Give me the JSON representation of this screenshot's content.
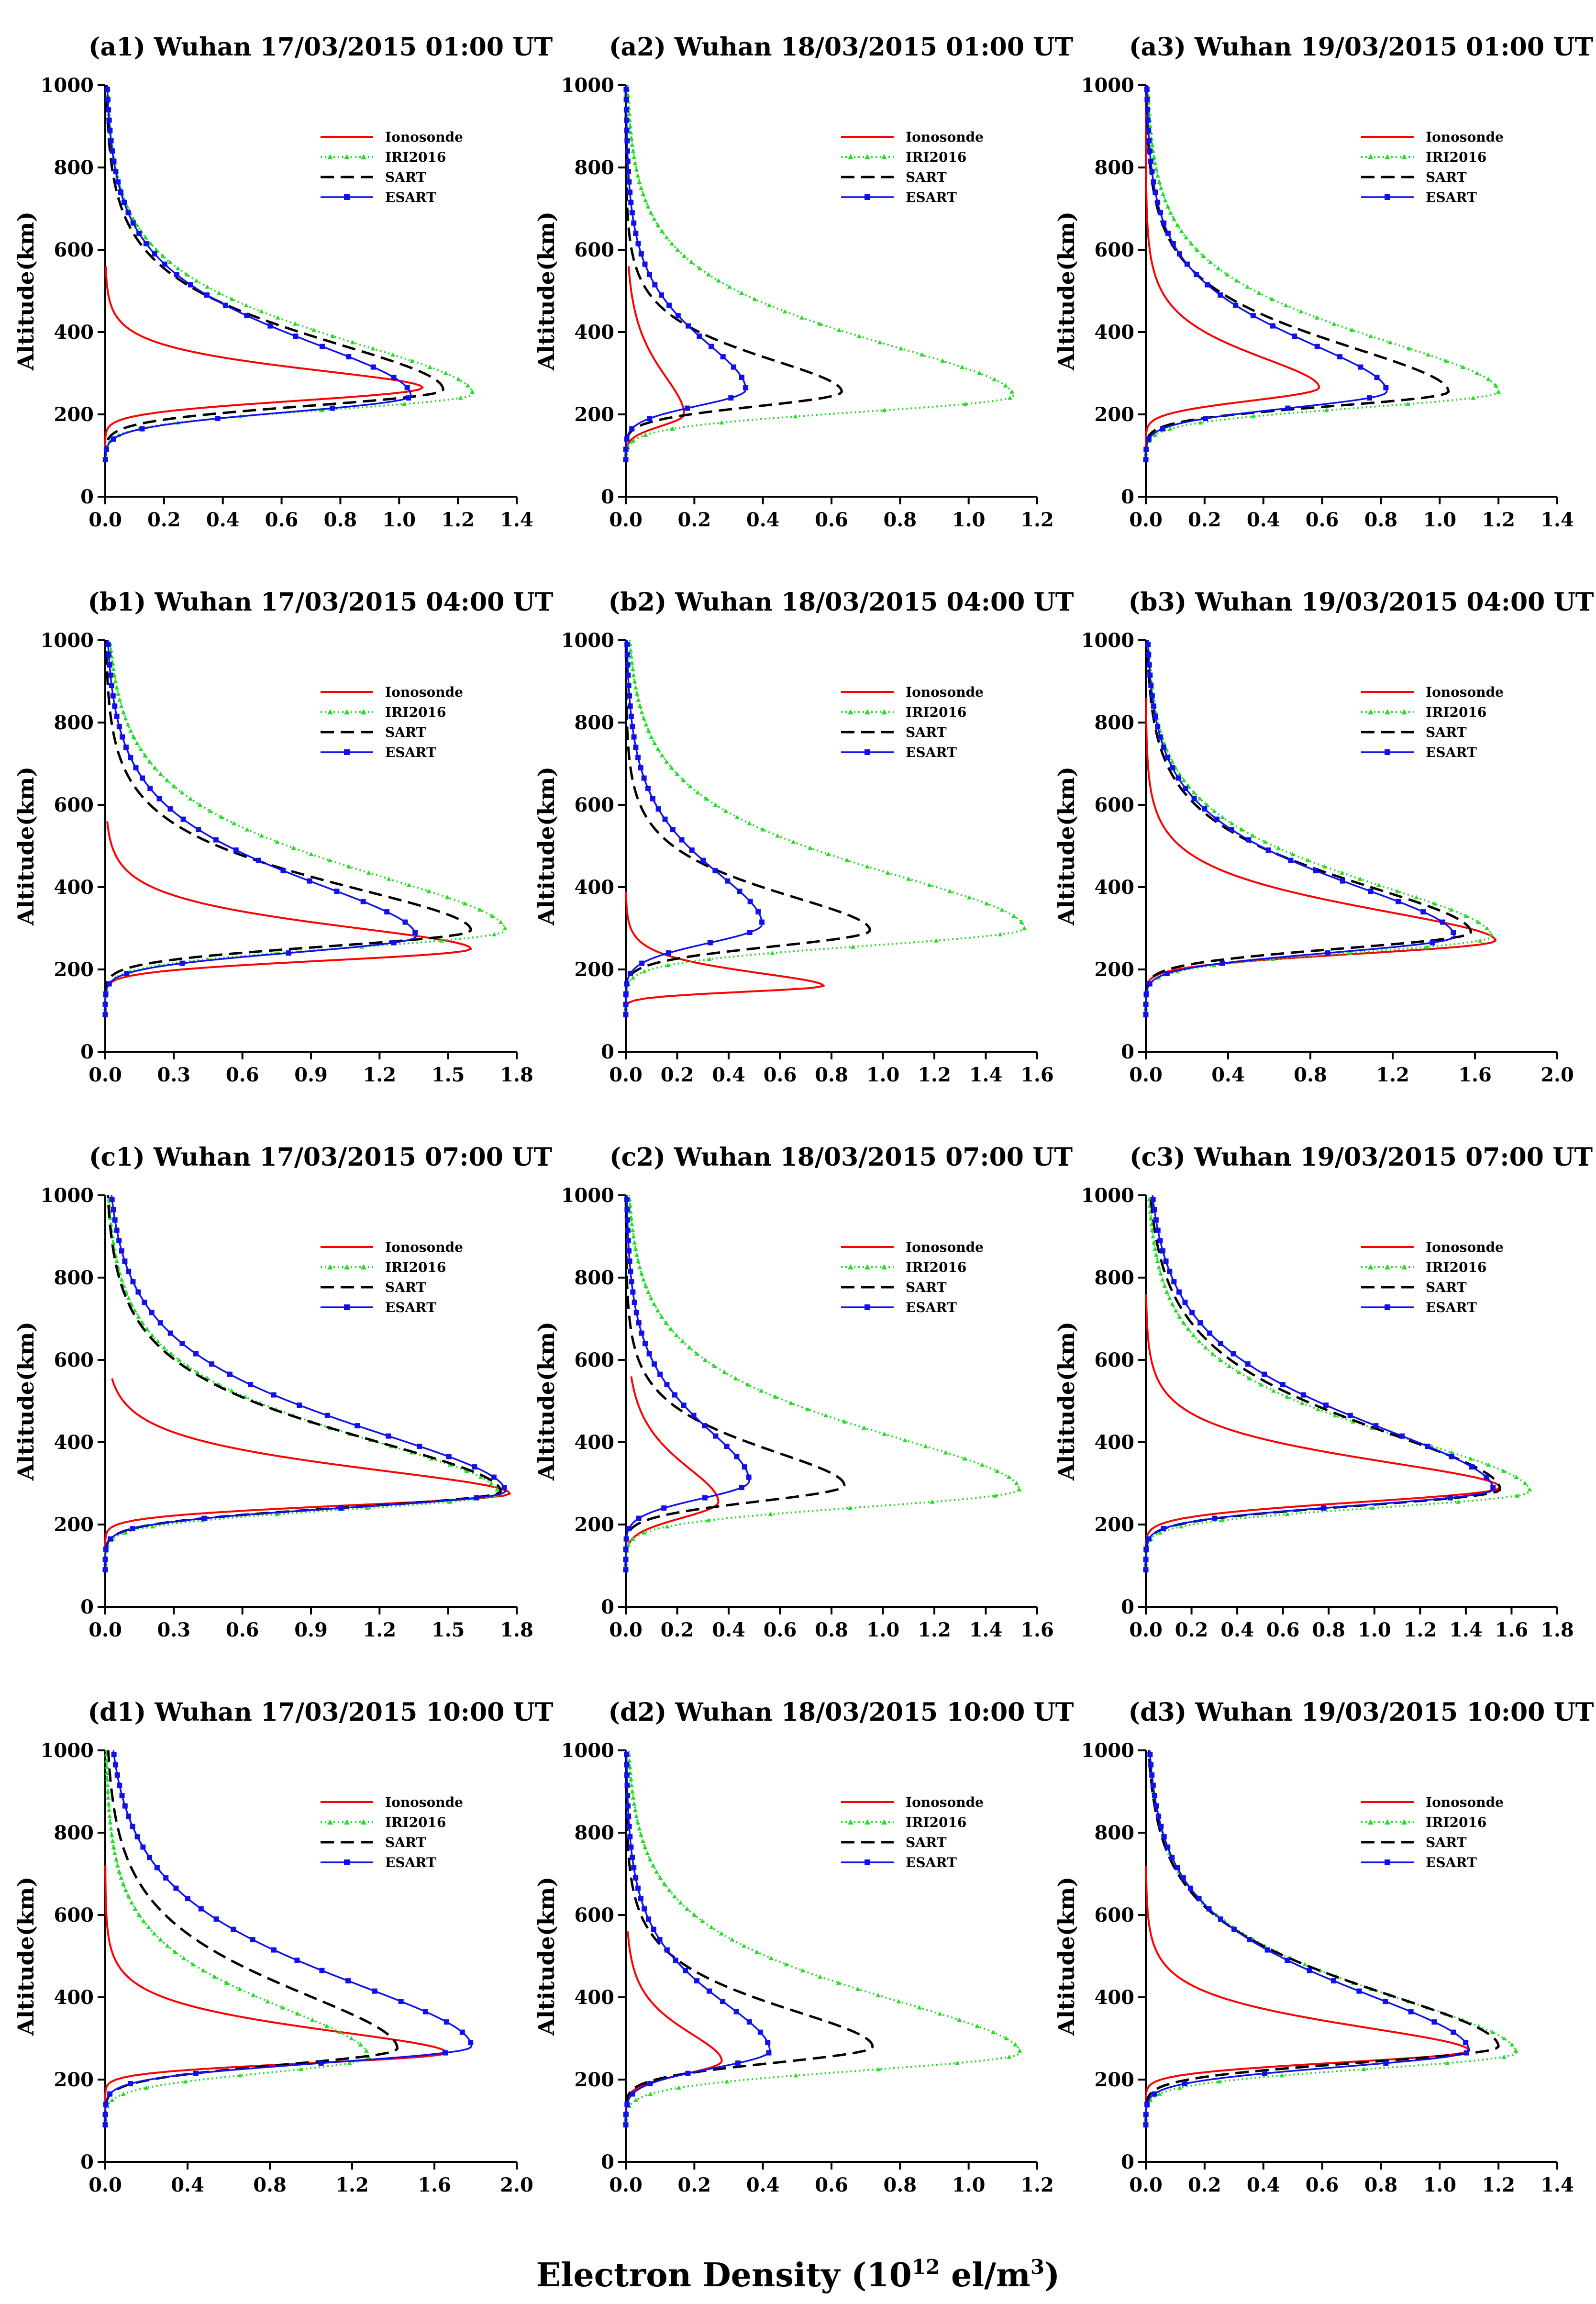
{
  "figure": {
    "xlabel": {
      "main": "Electron Density (10",
      "sup1": "12",
      "mid": " el/m",
      "sup2": "3",
      "end": ")"
    }
  },
  "legend_entries": [
    "Ionosonde",
    "IRI2016",
    "SART",
    "ESART"
  ],
  "series_colors": {
    "Ionosonde": "#ff0000",
    "IRI2016": "#22dd22",
    "SART": "#000000",
    "ESART": "#1010ee"
  },
  "chart_data": [
    {
      "id": "a1",
      "type": "line",
      "title": "(a1) Wuhan 17/03/2015  01:00 UT",
      "xlabel": "Electron Density (10^12 el/m^3)",
      "ylabel": "Altitude(km)",
      "xlim": [
        0,
        1.4
      ],
      "ylim": [
        0,
        1000
      ],
      "xticks": [
        "0.0",
        "0.2",
        "0.4",
        "0.6",
        "0.8",
        "1.0",
        "1.2",
        "1.4"
      ],
      "yticks": [
        "0",
        "200",
        "400",
        "600",
        "800",
        "1000"
      ],
      "series": [
        {
          "name": "Ionosonde",
          "peak": 1.08,
          "hmax": 265,
          "bot": 90,
          "top": 560,
          "sb": 45,
          "st": 40
        },
        {
          "name": "IRI2016",
          "peak": 1.25,
          "hmax": 250,
          "bot": 90,
          "top": 1000,
          "sb": 55,
          "st": 120
        },
        {
          "name": "SART",
          "peak": 1.15,
          "hmax": 260,
          "bot": 90,
          "top": 1000,
          "sb": 55,
          "st": 110
        },
        {
          "name": "ESART",
          "peak": 1.04,
          "hmax": 245,
          "bot": 90,
          "top": 1000,
          "sb": 55,
          "st": 125
        }
      ]
    },
    {
      "id": "a2",
      "type": "line",
      "title": "(a2) Wuhan 18/03/2015  01:00 UT",
      "xlabel": "Electron Density (10^12 el/m^3)",
      "ylabel": "Altitude(km)",
      "xlim": [
        0,
        1.2
      ],
      "ylim": [
        0,
        1000
      ],
      "xticks": [
        "0.0",
        "0.2",
        "0.4",
        "0.6",
        "0.8",
        "1.0",
        "1.2"
      ],
      "yticks": [
        "0",
        "200",
        "400",
        "600",
        "800",
        "1000"
      ],
      "series": [
        {
          "name": "Ionosonde",
          "peak": 0.17,
          "hmax": 200,
          "bot": 90,
          "top": 560,
          "sb": 40,
          "st": 90
        },
        {
          "name": "IRI2016",
          "peak": 1.13,
          "hmax": 245,
          "bot": 90,
          "top": 1000,
          "sb": 55,
          "st": 120
        },
        {
          "name": "SART",
          "peak": 0.63,
          "hmax": 255,
          "bot": 90,
          "top": 1000,
          "sb": 50,
          "st": 75
        },
        {
          "name": "ESART",
          "peak": 0.35,
          "hmax": 260,
          "bot": 90,
          "top": 1000,
          "sb": 55,
          "st": 110
        }
      ]
    },
    {
      "id": "a3",
      "type": "line",
      "title": "(a3) Wuhan 19/03/2015  01:00 UT",
      "xlabel": "Electron Density (10^12 el/m^3)",
      "ylabel": "Altitude(km)",
      "xlim": [
        0,
        1.4
      ],
      "ylim": [
        0,
        1000
      ],
      "xticks": [
        "0.0",
        "0.2",
        "0.4",
        "0.6",
        "0.8",
        "1.0",
        "1.2",
        "1.4"
      ],
      "yticks": [
        "0",
        "200",
        "400",
        "600",
        "800",
        "1000"
      ],
      "series": [
        {
          "name": "Ionosonde",
          "peak": 0.59,
          "hmax": 265,
          "bot": 90,
          "top": 1000,
          "sb": 45,
          "st": 70
        },
        {
          "name": "IRI2016",
          "peak": 1.2,
          "hmax": 255,
          "bot": 90,
          "top": 1000,
          "sb": 55,
          "st": 120
        },
        {
          "name": "SART",
          "peak": 1.03,
          "hmax": 255,
          "bot": 90,
          "top": 1000,
          "sb": 50,
          "st": 105
        },
        {
          "name": "ESART",
          "peak": 0.82,
          "hmax": 255,
          "bot": 90,
          "top": 1000,
          "sb": 55,
          "st": 115
        }
      ]
    },
    {
      "id": "b1",
      "type": "line",
      "title": "(b1) Wuhan 17/03/2015  04:00 UT",
      "xlabel": "Electron Density (10^12 el/m^3)",
      "ylabel": "Altitude(km)",
      "xlim": [
        0,
        1.8
      ],
      "ylim": [
        0,
        1000
      ],
      "xticks": [
        "0.0",
        "0.3",
        "0.6",
        "0.9",
        "1.2",
        "1.5",
        "1.8"
      ],
      "yticks": [
        "0",
        "200",
        "400",
        "600",
        "800",
        "1000"
      ],
      "series": [
        {
          "name": "Ionosonde",
          "peak": 1.6,
          "hmax": 250,
          "bot": 90,
          "top": 560,
          "sb": 40,
          "st": 50
        },
        {
          "name": "IRI2016",
          "peak": 1.75,
          "hmax": 295,
          "bot": 90,
          "top": 1000,
          "sb": 60,
          "st": 130
        },
        {
          "name": "SART",
          "peak": 1.6,
          "hmax": 295,
          "bot": 90,
          "top": 1000,
          "sb": 55,
          "st": 100
        },
        {
          "name": "ESART",
          "peak": 1.36,
          "hmax": 280,
          "bot": 90,
          "top": 1000,
          "sb": 55,
          "st": 125
        }
      ]
    },
    {
      "id": "b2",
      "type": "line",
      "title": "(b2) Wuhan 18/03/2015  04:00 UT",
      "xlabel": "Electron Density (10^12 el/m^3)",
      "ylabel": "Altitude(km)",
      "xlim": [
        0,
        1.6
      ],
      "ylim": [
        0,
        1000
      ],
      "xticks": [
        "0.0",
        "0.2",
        "0.4",
        "0.6",
        "0.8",
        "1.0",
        "1.2",
        "1.4",
        "1.6"
      ],
      "yticks": [
        "0",
        "200",
        "400",
        "600",
        "800",
        "1000"
      ],
      "series": [
        {
          "name": "Ionosonde",
          "peak": 0.77,
          "hmax": 160,
          "bot": 90,
          "top": 390,
          "sb": 20,
          "st": 30
        },
        {
          "name": "IRI2016",
          "peak": 1.55,
          "hmax": 300,
          "bot": 90,
          "top": 1000,
          "sb": 60,
          "st": 125
        },
        {
          "name": "SART",
          "peak": 0.95,
          "hmax": 295,
          "bot": 90,
          "top": 1000,
          "sb": 55,
          "st": 80
        },
        {
          "name": "ESART",
          "peak": 0.53,
          "hmax": 310,
          "bot": 90,
          "top": 1000,
          "sb": 65,
          "st": 120
        }
      ]
    },
    {
      "id": "b3",
      "type": "line",
      "title": "(b3) Wuhan 19/03/2015  04:00 UT",
      "xlabel": "Electron Density (10^12 el/m^3)",
      "ylabel": "Altitude(km)",
      "xlim": [
        0,
        2.0
      ],
      "ylim": [
        0,
        1000
      ],
      "xticks": [
        "0.0",
        "0.4",
        "0.8",
        "1.2",
        "1.6",
        "2.0"
      ],
      "yticks": [
        "0",
        "200",
        "400",
        "600",
        "800",
        "1000"
      ],
      "series": [
        {
          "name": "Ionosonde",
          "peak": 1.7,
          "hmax": 270,
          "bot": 90,
          "top": 860,
          "sb": 45,
          "st": 70
        },
        {
          "name": "IRI2016",
          "peak": 1.68,
          "hmax": 280,
          "bot": 90,
          "top": 1000,
          "sb": 55,
          "st": 120
        },
        {
          "name": "SART",
          "peak": 1.58,
          "hmax": 290,
          "bot": 90,
          "top": 1000,
          "sb": 55,
          "st": 110
        },
        {
          "name": "ESART",
          "peak": 1.5,
          "hmax": 280,
          "bot": 90,
          "top": 1000,
          "sb": 55,
          "st": 120
        }
      ]
    },
    {
      "id": "c1",
      "type": "line",
      "title": "(c1) Wuhan 17/03/2015  07:00 UT",
      "xlabel": "Electron Density (10^12 el/m^3)",
      "ylabel": "Altitude(km)",
      "xlim": [
        0,
        1.8
      ],
      "ylim": [
        0,
        1000
      ],
      "xticks": [
        "0.0",
        "0.3",
        "0.6",
        "0.9",
        "1.2",
        "1.5",
        "1.8"
      ],
      "yticks": [
        "0",
        "200",
        "400",
        "600",
        "800",
        "1000"
      ],
      "series": [
        {
          "name": "Ionosonde",
          "peak": 1.77,
          "hmax": 275,
          "bot": 90,
          "top": 555,
          "sb": 40,
          "st": 55
        },
        {
          "name": "IRI2016",
          "peak": 1.72,
          "hmax": 275,
          "bot": 90,
          "top": 1000,
          "sb": 55,
          "st": 125
        },
        {
          "name": "SART",
          "peak": 1.73,
          "hmax": 280,
          "bot": 90,
          "top": 1000,
          "sb": 55,
          "st": 120
        },
        {
          "name": "ESART",
          "peak": 1.75,
          "hmax": 280,
          "bot": 90,
          "top": 1000,
          "sb": 55,
          "st": 140
        }
      ]
    },
    {
      "id": "c2",
      "type": "line",
      "title": "(c2) Wuhan 18/03/2015  07:00 UT",
      "xlabel": "Electron Density (10^12 el/m^3)",
      "ylabel": "Altitude(km)",
      "xlim": [
        0,
        1.6
      ],
      "ylim": [
        0,
        1000
      ],
      "xticks": [
        "0.0",
        "0.2",
        "0.4",
        "0.6",
        "0.8",
        "1.0",
        "1.2",
        "1.4",
        "1.6"
      ],
      "yticks": [
        "0",
        "200",
        "400",
        "600",
        "800",
        "1000"
      ],
      "series": [
        {
          "name": "Ionosonde",
          "peak": 0.36,
          "hmax": 255,
          "bot": 90,
          "top": 560,
          "sb": 55,
          "st": 80
        },
        {
          "name": "IRI2016",
          "peak": 1.53,
          "hmax": 285,
          "bot": 90,
          "top": 1000,
          "sb": 60,
          "st": 125
        },
        {
          "name": "SART",
          "peak": 0.85,
          "hmax": 295,
          "bot": 90,
          "top": 1000,
          "sb": 55,
          "st": 80
        },
        {
          "name": "ESART",
          "peak": 0.48,
          "hmax": 305,
          "bot": 90,
          "top": 1000,
          "sb": 60,
          "st": 120
        }
      ]
    },
    {
      "id": "c3",
      "type": "line",
      "title": "(c3) Wuhan 19/03/2015  07:00 UT",
      "xlabel": "Electron Density (10^12 el/m^3)",
      "ylabel": "Altitude(km)",
      "xlim": [
        0,
        1.8
      ],
      "ylim": [
        0,
        1000
      ],
      "xticks": [
        "0.0",
        "0.2",
        "0.4",
        "0.6",
        "0.8",
        "1.0",
        "1.2",
        "1.4",
        "1.6",
        "1.8"
      ],
      "yticks": [
        "0",
        "200",
        "400",
        "600",
        "800",
        "1000"
      ],
      "series": [
        {
          "name": "Ionosonde",
          "peak": 1.55,
          "hmax": 290,
          "bot": 90,
          "top": 760,
          "sb": 50,
          "st": 60
        },
        {
          "name": "IRI2016",
          "peak": 1.68,
          "hmax": 280,
          "bot": 90,
          "top": 1000,
          "sb": 55,
          "st": 125
        },
        {
          "name": "SART",
          "peak": 1.55,
          "hmax": 285,
          "bot": 90,
          "top": 1000,
          "sb": 55,
          "st": 135
        },
        {
          "name": "ESART",
          "peak": 1.52,
          "hmax": 285,
          "bot": 90,
          "top": 1000,
          "sb": 55,
          "st": 145
        }
      ]
    },
    {
      "id": "d1",
      "type": "line",
      "title": "(d1) Wuhan 17/03/2015  10:00 UT",
      "xlabel": "Electron Density (10^12 el/m^3)",
      "ylabel": "Altitude(km)",
      "xlim": [
        0,
        2.0
      ],
      "ylim": [
        0,
        1000
      ],
      "xticks": [
        "0.0",
        "0.4",
        "0.8",
        "1.2",
        "1.6",
        "2.0"
      ],
      "yticks": [
        "0",
        "200",
        "400",
        "600",
        "800",
        "1000"
      ],
      "series": [
        {
          "name": "Ionosonde",
          "peak": 1.66,
          "hmax": 265,
          "bot": 90,
          "top": 720,
          "sb": 35,
          "st": 50
        },
        {
          "name": "IRI2016",
          "peak": 1.28,
          "hmax": 255,
          "bot": 90,
          "top": 1000,
          "sb": 55,
          "st": 115
        },
        {
          "name": "SART",
          "peak": 1.42,
          "hmax": 275,
          "bot": 90,
          "top": 1000,
          "sb": 55,
          "st": 130
        },
        {
          "name": "ESART",
          "peak": 1.78,
          "hmax": 280,
          "bot": 90,
          "top": 1000,
          "sb": 55,
          "st": 150
        }
      ]
    },
    {
      "id": "d2",
      "type": "line",
      "title": "(d2) Wuhan 18/03/2015  10:00 UT",
      "xlabel": "Electron Density (10^12 el/m^3)",
      "ylabel": "Altitude(km)",
      "xlim": [
        0,
        1.2
      ],
      "ylim": [
        0,
        1000
      ],
      "xticks": [
        "0.0",
        "0.2",
        "0.4",
        "0.6",
        "0.8",
        "1.0",
        "1.2"
      ],
      "yticks": [
        "0",
        "200",
        "400",
        "600",
        "800",
        "1000"
      ],
      "series": [
        {
          "name": "Ionosonde",
          "peak": 0.28,
          "hmax": 245,
          "bot": 90,
          "top": 560,
          "sb": 45,
          "st": 65
        },
        {
          "name": "IRI2016",
          "peak": 1.15,
          "hmax": 265,
          "bot": 90,
          "top": 1000,
          "sb": 60,
          "st": 125
        },
        {
          "name": "SART",
          "peak": 0.72,
          "hmax": 280,
          "bot": 90,
          "top": 1000,
          "sb": 55,
          "st": 85
        },
        {
          "name": "ESART",
          "peak": 0.42,
          "hmax": 270,
          "bot": 90,
          "top": 1000,
          "sb": 60,
          "st": 115
        }
      ]
    },
    {
      "id": "d3",
      "type": "line",
      "title": "(d3) Wuhan 19/03/2015  10:00 UT",
      "xlabel": "Electron Density (10^12 el/m^3)",
      "ylabel": "Altitude(km)",
      "xlim": [
        0,
        1.4
      ],
      "ylim": [
        0,
        1000
      ],
      "xticks": [
        "0.0",
        "0.2",
        "0.4",
        "0.6",
        "0.8",
        "1.0",
        "1.2",
        "1.4"
      ],
      "yticks": [
        "0",
        "200",
        "400",
        "600",
        "800",
        "1000"
      ],
      "series": [
        {
          "name": "Ionosonde",
          "peak": 1.1,
          "hmax": 270,
          "bot": 90,
          "top": 720,
          "sb": 40,
          "st": 55
        },
        {
          "name": "IRI2016",
          "peak": 1.26,
          "hmax": 265,
          "bot": 90,
          "top": 1000,
          "sb": 55,
          "st": 130
        },
        {
          "name": "SART",
          "peak": 1.2,
          "hmax": 280,
          "bot": 90,
          "top": 1000,
          "sb": 55,
          "st": 125
        },
        {
          "name": "ESART",
          "peak": 1.1,
          "hmax": 270,
          "bot": 90,
          "top": 1000,
          "sb": 55,
          "st": 135
        }
      ]
    }
  ]
}
